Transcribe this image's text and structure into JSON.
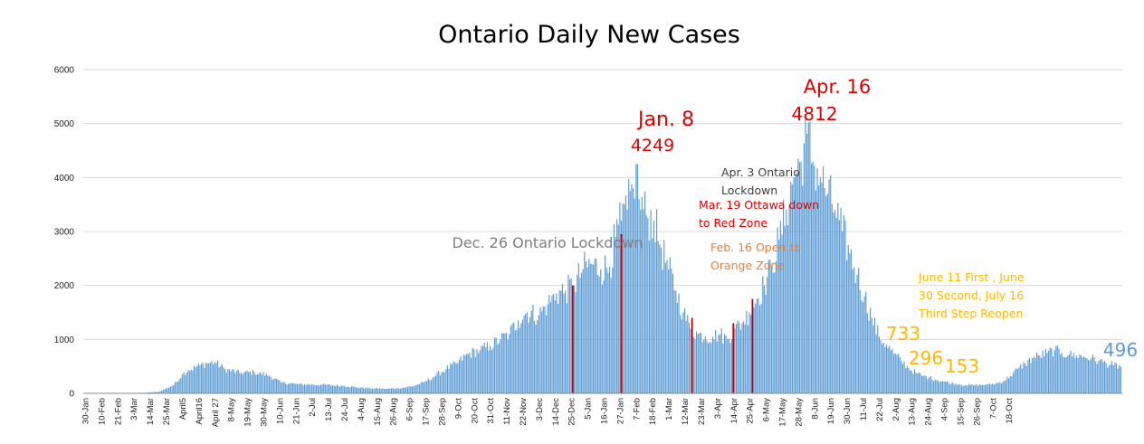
{
  "chart_data": {
    "type": "bar",
    "title": "Ontario Daily New Cases",
    "xlabel": "",
    "ylabel": "",
    "ylim": [
      0,
      6000
    ],
    "yticks": [
      "0",
      "1000",
      "2000",
      "3000",
      "4000",
      "5000",
      "6000"
    ],
    "grid": true,
    "legend": "none",
    "bar_color": "#5b9bd5",
    "marker_color": "#c00000",
    "xtick_labels": [
      "30-Jan",
      "10-Feb",
      "21-Feb",
      "3-Mar",
      "14-Mar",
      "25-Mar",
      "April5",
      "April16",
      "April 27",
      "8-May",
      "19-May",
      "30-May",
      "10-Jun",
      "21-Jun",
      "2-Jul",
      "13-Jul",
      "24-Jul",
      "4-Aug",
      "15-Aug",
      "26-Aug",
      "6-Sep",
      "17-Sep",
      "28-Sep",
      "9-Oct",
      "20-Oct",
      "31-Oct",
      "11-Nov",
      "22-Nov",
      "3-Dec",
      "14-Dec",
      "25-Dec",
      "5-Jan",
      "16-Jan",
      "27-Jan",
      "7-Feb",
      "18-Feb",
      "1-Mar",
      "12-Mar",
      "23-Mar",
      "3-Apr",
      "14-Apr",
      "25-Apr",
      "6-May",
      "17-May",
      "28-May",
      "8-Jun",
      "19-Jun",
      "30-Jun",
      "11-Jul",
      "22-Jul",
      "2-Aug",
      "13-Aug",
      "24-Aug",
      "4-Sep",
      "15-Sep",
      "26-Sep",
      "7-Oct",
      "18-Oct"
    ],
    "label_interval_days": 11,
    "anchors": [
      [
        0,
        1
      ],
      [
        40,
        10
      ],
      [
        50,
        30
      ],
      [
        60,
        150
      ],
      [
        66,
        350
      ],
      [
        70,
        430
      ],
      [
        78,
        520
      ],
      [
        83,
        560
      ],
      [
        88,
        580
      ],
      [
        95,
        450
      ],
      [
        105,
        380
      ],
      [
        115,
        390
      ],
      [
        125,
        330
      ],
      [
        133,
        200
      ],
      [
        145,
        170
      ],
      [
        160,
        160
      ],
      [
        175,
        140
      ],
      [
        185,
        110
      ],
      [
        195,
        90
      ],
      [
        205,
        85
      ],
      [
        215,
        100
      ],
      [
        222,
        130
      ],
      [
        230,
        200
      ],
      [
        238,
        330
      ],
      [
        245,
        450
      ],
      [
        252,
        550
      ],
      [
        260,
        730
      ],
      [
        268,
        800
      ],
      [
        275,
        880
      ],
      [
        282,
        1000
      ],
      [
        288,
        1100
      ],
      [
        294,
        1350
      ],
      [
        300,
        1500
      ],
      [
        308,
        1450
      ],
      [
        314,
        1650
      ],
      [
        320,
        1850
      ],
      [
        326,
        1900
      ],
      [
        332,
        2000
      ],
      [
        338,
        2300
      ],
      [
        344,
        2400
      ],
      [
        350,
        2300
      ],
      [
        356,
        2350
      ],
      [
        360,
        2900
      ],
      [
        364,
        3200
      ],
      [
        368,
        3400
      ],
      [
        372,
        3800
      ],
      [
        374,
        4249
      ],
      [
        376,
        3600
      ],
      [
        381,
        3300
      ],
      [
        386,
        3200
      ],
      [
        391,
        2700
      ],
      [
        396,
        2300
      ],
      [
        401,
        1900
      ],
      [
        406,
        1500
      ],
      [
        411,
        1200
      ],
      [
        416,
        1100
      ],
      [
        421,
        1050
      ],
      [
        426,
        1050
      ],
      [
        431,
        1100
      ],
      [
        436,
        1000
      ],
      [
        441,
        1200
      ],
      [
        446,
        1300
      ],
      [
        451,
        1500
      ],
      [
        456,
        1750
      ],
      [
        461,
        2000
      ],
      [
        466,
        2350
      ],
      [
        471,
        2850
      ],
      [
        476,
        3400
      ],
      [
        481,
        4000
      ],
      [
        486,
        4300
      ],
      [
        490,
        4812
      ],
      [
        494,
        4300
      ],
      [
        499,
        4000
      ],
      [
        504,
        3700
      ],
      [
        509,
        3400
      ],
      [
        514,
        3000
      ],
      [
        519,
        2600
      ],
      [
        524,
        2200
      ],
      [
        529,
        1800
      ],
      [
        534,
        1400
      ],
      [
        539,
        1050
      ],
      [
        544,
        900
      ],
      [
        549,
        733
      ],
      [
        554,
        600
      ],
      [
        559,
        470
      ],
      [
        564,
        380
      ],
      [
        569,
        320
      ],
      [
        573,
        296
      ],
      [
        578,
        250
      ],
      [
        583,
        220
      ],
      [
        588,
        190
      ],
      [
        593,
        170
      ],
      [
        598,
        153
      ],
      [
        603,
        150
      ],
      [
        608,
        155
      ],
      [
        613,
        165
      ],
      [
        618,
        180
      ],
      [
        623,
        220
      ],
      [
        628,
        320
      ],
      [
        633,
        450
      ],
      [
        638,
        550
      ],
      [
        643,
        650
      ],
      [
        648,
        700
      ],
      [
        653,
        750
      ],
      [
        658,
        800
      ],
      [
        663,
        750
      ],
      [
        668,
        720
      ],
      [
        673,
        700
      ],
      [
        678,
        680
      ],
      [
        683,
        650
      ],
      [
        688,
        600
      ],
      [
        693,
        560
      ],
      [
        698,
        520
      ],
      [
        703,
        496
      ]
    ],
    "noise_amplitude": 0.14,
    "noise_seed": 12345,
    "markers": [
      {
        "day": 331,
        "value": 2000
      },
      {
        "day": 364,
        "value": 2950
      },
      {
        "day": 412,
        "value": 1400
      },
      {
        "day": 440,
        "value": 1300
      },
      {
        "day": 453,
        "value": 1750
      }
    ],
    "annotations": [
      {
        "lines": [
          "Jan. 8"
        ],
        "color": "#e00000",
        "font_size": 22
      },
      {
        "lines": [
          "4249"
        ],
        "color": "#e00000",
        "font_size": 19
      },
      {
        "lines": [
          "Apr. 16"
        ],
        "color": "#e00000",
        "font_size": 21
      },
      {
        "lines": [
          "4812"
        ],
        "color": "#e00000",
        "font_size": 20
      },
      {
        "lines": [
          "Dec. 26 Ontario Lockdown"
        ],
        "color": "#7f7f7f",
        "font_size": 16
      },
      {
        "lines": [
          "Apr. 3 Ontario",
          "Lockdown"
        ],
        "color": "#404040",
        "font_size": 12.5
      },
      {
        "lines": [
          "Mar. 19 Ottawa down",
          "to Red Zone"
        ],
        "color": "#e00000",
        "font_size": 12.5
      },
      {
        "lines": [
          "Feb. 16 Open to",
          "Orange Zone"
        ],
        "color": "#ed7d31",
        "font_size": 12.5
      },
      {
        "lines": [
          "June 11 First , June",
          "30 Second, July 16",
          "Third Step Reopen"
        ],
        "color": "#ffb800",
        "font_size": 12.5
      },
      {
        "lines": [
          "733"
        ],
        "color": "#ffb800",
        "font_size": 20
      },
      {
        "lines": [
          "296"
        ],
        "color": "#ffb800",
        "font_size": 20
      },
      {
        "lines": [
          "153"
        ],
        "color": "#ffb800",
        "font_size": 20
      },
      {
        "lines": [
          "496"
        ],
        "color": "#5b9bd5",
        "font_size": 20
      }
    ]
  }
}
